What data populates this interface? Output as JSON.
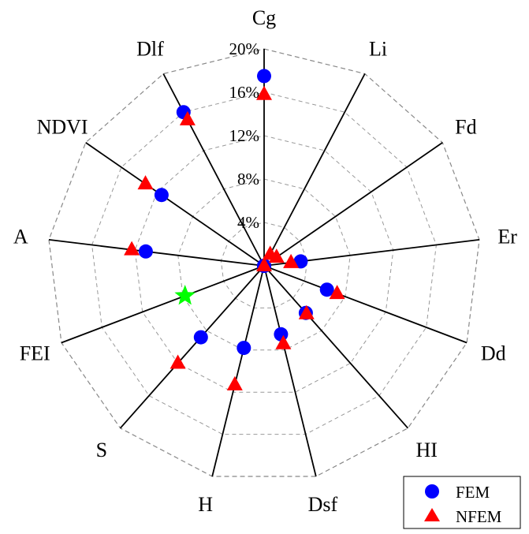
{
  "chart_data": {
    "type": "radar",
    "axes": [
      "Cg",
      "Li",
      "Fd",
      "Er",
      "Dd",
      "HI",
      "Dsf",
      "H",
      "S",
      "FEI",
      "A",
      "NDVI",
      "Dlf"
    ],
    "ticks": [
      "4%",
      "8%",
      "12%",
      "16%",
      "20%"
    ],
    "rmax": 20,
    "grid": true,
    "legend_position": "bottom-right",
    "series": [
      {
        "name": "FEM",
        "marker": "circle",
        "color": "#0000ff",
        "values": [
          17.5,
          0,
          0,
          3.4,
          6.2,
          5.8,
          6.5,
          7.8,
          8.8,
          0,
          11.0,
          11.5,
          16.0
        ]
      },
      {
        "name": "NFEM",
        "marker": "triangle",
        "color": "#ff0000",
        "values": [
          15.8,
          1.2,
          1.4,
          2.5,
          7.2,
          5.9,
          7.4,
          11.3,
          12.0,
          0,
          12.3,
          13.3,
          15.2
        ]
      },
      {
        "name": "",
        "marker": "star",
        "color": "#00ff00",
        "values": [
          0,
          0,
          0,
          0,
          0,
          0,
          0,
          0,
          0,
          7.8,
          0,
          0,
          0
        ]
      }
    ]
  }
}
